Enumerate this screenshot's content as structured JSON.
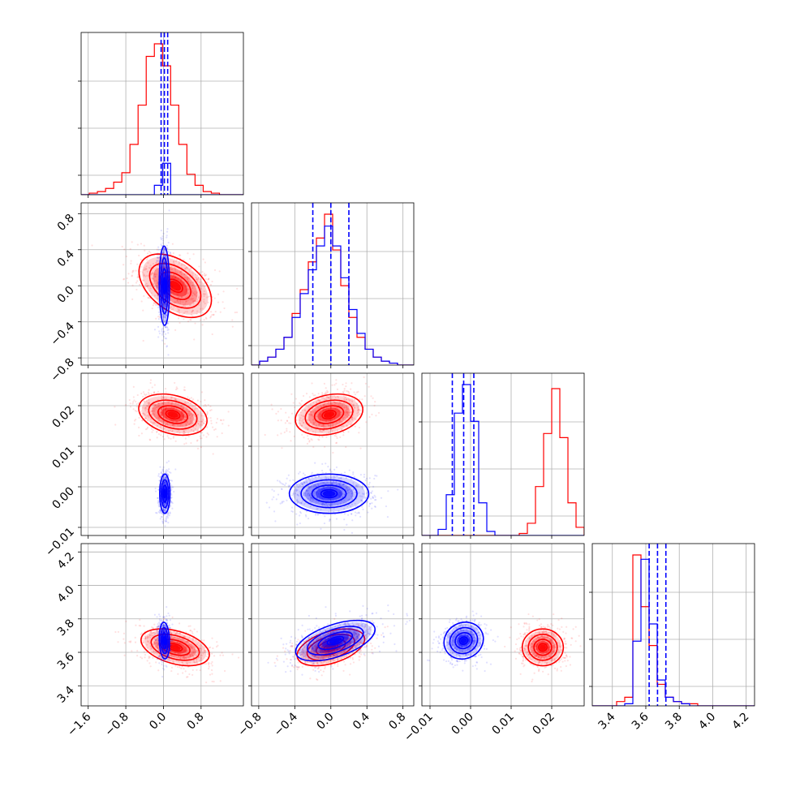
{
  "chart_data": {
    "type": "corner",
    "grid": true,
    "colors": {
      "red": "#ff0000",
      "blue": "#0000ff"
    },
    "series": [
      {
        "color": "red",
        "sample_count": "many"
      },
      {
        "color": "blue",
        "sample_count": "many"
      }
    ],
    "parameters": [
      {
        "range": [
          -1.75,
          1.7
        ],
        "ticks": [
          -1.6,
          -0.8,
          0.0,
          0.8
        ],
        "tick_labels": [
          "−1.6",
          "−0.8",
          "0.0",
          "0.8"
        ],
        "quantile_lines_blue": [
          -0.05,
          0.02,
          0.09
        ],
        "hist": {
          "red": {
            "edges_start": -1.75,
            "bin_width": 0.173,
            "counts": [
              0,
              1,
              2,
              4,
              8,
              14,
              32,
              57,
              88,
              96,
              82,
              57,
              32,
              13,
              6,
              2,
              1,
              0,
              0,
              0
            ]
          },
          "blue": {
            "edges_start": -1.75,
            "bin_width": 0.173,
            "counts": [
              0,
              0,
              0,
              0,
              0,
              0,
              0,
              0,
              0,
              6,
              20,
              0,
              0,
              0,
              0,
              0,
              0,
              0,
              0,
              0
            ]
          }
        }
      },
      {
        "range": [
          -0.88,
          0.92
        ],
        "ticks": [
          -0.8,
          -0.4,
          0.0,
          0.4,
          0.8
        ],
        "tick_labels": [
          "−0.8",
          "−0.4",
          "0.0",
          "0.4",
          "0.8"
        ],
        "quantile_lines_blue": [
          -0.2,
          0.0,
          0.2
        ],
        "hist": {
          "red": {
            "edges_start": -0.88,
            "bin_width": 0.09,
            "counts": [
              0,
              2,
              4,
              8,
              14,
              26,
              38,
              52,
              64,
              76,
              58,
              40,
              24,
              14,
              8,
              4,
              2,
              1,
              0,
              0
            ]
          },
          "blue": {
            "edges_start": -0.88,
            "bin_width": 0.09,
            "counts": [
              0,
              2,
              4,
              8,
              14,
              24,
              36,
              48,
              60,
              70,
              60,
              44,
              28,
              16,
              8,
              4,
              2,
              1,
              0,
              0
            ]
          }
        }
      },
      {
        "range": [
          -0.012,
          0.028
        ],
        "ticks": [
          -0.01,
          0.0,
          0.01,
          0.02
        ],
        "tick_labels": [
          "−0.01",
          "0.00",
          "0.01",
          "0.02"
        ],
        "quantile_lines_blue": [
          -0.0045,
          -0.0017,
          0.0008
        ],
        "hist": {
          "red": {
            "edges_start": -0.012,
            "bin_width": 0.002,
            "counts": [
              0,
              0,
              0,
              0,
              0,
              0,
              0,
              0,
              0,
              0,
              0,
              0,
              1,
              6,
              24,
              50,
              72,
              48,
              16,
              4
            ]
          },
          "blue": {
            "edges_start": -0.012,
            "bin_width": 0.002,
            "counts": [
              0,
              0,
              3,
              20,
              60,
              74,
              56,
              16,
              2,
              0,
              0,
              0,
              0,
              0,
              0,
              0,
              0,
              0,
              0,
              0
            ]
          }
        }
      },
      {
        "range": [
          3.28,
          4.25
        ],
        "ticks": [
          3.4,
          3.6,
          3.8,
          4.0,
          4.2
        ],
        "tick_labels": [
          "3.4",
          "3.6",
          "3.8",
          "4.0",
          "4.2"
        ],
        "quantile_lines_blue": [
          3.62,
          3.67,
          3.72
        ],
        "hist": {
          "red": {
            "edges_start": 3.28,
            "bin_width": 0.0485,
            "counts": [
              0,
              0,
              0,
              2,
              4,
              70,
              46,
              28,
              10,
              4,
              2,
              1,
              1,
              0,
              0,
              0,
              0,
              0,
              0,
              0
            ]
          },
          "blue": {
            "edges_start": 3.28,
            "bin_width": 0.0485,
            "counts": [
              0,
              0,
              0,
              0,
              1,
              30,
              68,
              38,
              12,
              4,
              2,
              1,
              0,
              0,
              0,
              0,
              0,
              0,
              0,
              0
            ]
          }
        }
      }
    ],
    "pairs": [
      {
        "xi": 0,
        "yi": 1,
        "red": {
          "center": [
            0.25,
            0.0
          ],
          "sd": [
            0.35,
            0.16
          ],
          "rho": -0.45
        },
        "blue": {
          "center": [
            0.02,
            0.0
          ],
          "sd": [
            0.05,
            0.2
          ],
          "rho": -0.05
        }
      },
      {
        "xi": 0,
        "yi": 2,
        "red": {
          "center": [
            0.2,
            0.0178
          ],
          "sd": [
            0.33,
            0.0023
          ],
          "rho": -0.3
        },
        "blue": {
          "center": [
            0.03,
            -0.0017
          ],
          "sd": [
            0.05,
            0.0022
          ],
          "rho": 0.0
        }
      },
      {
        "xi": 1,
        "yi": 2,
        "red": {
          "center": [
            -0.02,
            0.0178
          ],
          "sd": [
            0.17,
            0.0023
          ],
          "rho": 0.25
        },
        "blue": {
          "center": [
            -0.02,
            -0.0017
          ],
          "sd": [
            0.2,
            0.0022
          ],
          "rho": 0.0
        }
      },
      {
        "xi": 0,
        "yi": 3,
        "red": {
          "center": [
            0.25,
            3.63
          ],
          "sd": [
            0.33,
            0.05
          ],
          "rho": -0.4
        },
        "blue": {
          "center": [
            0.02,
            3.67
          ],
          "sd": [
            0.05,
            0.05
          ],
          "rho": -0.1
        }
      },
      {
        "xi": 1,
        "yi": 3,
        "red": {
          "center": [
            0.0,
            3.63
          ],
          "sd": [
            0.17,
            0.05
          ],
          "rho": 0.45
        },
        "blue": {
          "center": [
            0.05,
            3.67
          ],
          "sd": [
            0.2,
            0.055
          ],
          "rho": 0.55
        }
      },
      {
        "xi": 2,
        "yi": 3,
        "red": {
          "center": [
            0.0178,
            3.63
          ],
          "sd": [
            0.0023,
            0.05
          ],
          "rho": 0.0
        },
        "blue": {
          "center": [
            -0.0017,
            3.67
          ],
          "sd": [
            0.0022,
            0.05
          ],
          "rho": 0.1
        }
      }
    ]
  }
}
